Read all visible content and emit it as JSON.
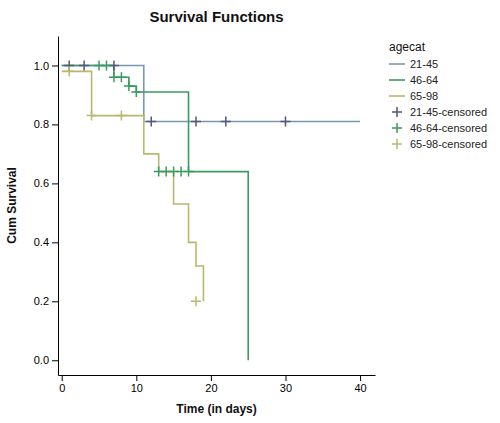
{
  "chart_data": {
    "type": "step",
    "title": "Survival Functions",
    "x_label": "Time (in days)",
    "y_label": "Cum Survival",
    "legend_title": "agecat",
    "legend": "upper right",
    "grid": false,
    "xlim": [
      -0.5,
      42
    ],
    "ylim": [
      -0.05,
      1.1
    ],
    "xticks": [
      0,
      10,
      20,
      30,
      40
    ],
    "yticks": [
      {
        "value": 0.0,
        "label": "0.0"
      },
      0.2,
      0.4,
      0.6,
      0.8,
      {
        "value": 1.0,
        "label": "1.0"
      }
    ],
    "series": [
      {
        "name": "21-45",
        "type": "step",
        "color": "#7899aa",
        "x": [
          0,
          11,
          11,
          40
        ],
        "values": [
          1.0,
          1.0,
          0.81,
          0.81
        ]
      },
      {
        "name": "46-64",
        "type": "step",
        "color": "#3a9a60",
        "x": [
          0,
          5,
          7,
          9,
          10,
          17,
          17,
          25,
          25
        ],
        "values": [
          1.0,
          1.0,
          0.96,
          0.93,
          0.91,
          0.64,
          0.64,
          0.32,
          0.0
        ]
      },
      {
        "name": "65-98",
        "type": "step",
        "color": "#b8b870",
        "x": [
          0,
          1,
          4,
          8,
          11,
          13,
          15,
          17,
          18,
          19
        ],
        "values": [
          0.98,
          0.98,
          0.83,
          0.83,
          0.7,
          0.64,
          0.53,
          0.4,
          0.32,
          0.2
        ]
      },
      {
        "name": "21-45-censored",
        "type": "scatter",
        "marker": "plus",
        "color": "#555577",
        "x": [
          1,
          3,
          7,
          12,
          18,
          22,
          30
        ],
        "values": [
          1.0,
          1.0,
          1.0,
          0.81,
          0.81,
          0.81,
          0.81
        ]
      },
      {
        "name": "46-64-censored",
        "type": "scatter",
        "marker": "plus",
        "color": "#3a9a60",
        "x": [
          5,
          6,
          7,
          8,
          9,
          10,
          13,
          14,
          15,
          16,
          17
        ],
        "values": [
          1.0,
          1.0,
          0.96,
          0.96,
          0.93,
          0.91,
          0.64,
          0.64,
          0.64,
          0.64,
          0.64
        ]
      },
      {
        "name": "65-98-censored",
        "type": "scatter",
        "marker": "plus",
        "color": "#b8b870",
        "x": [
          1,
          4,
          8,
          18
        ],
        "values": [
          0.98,
          0.83,
          0.83,
          0.2
        ]
      }
    ]
  }
}
